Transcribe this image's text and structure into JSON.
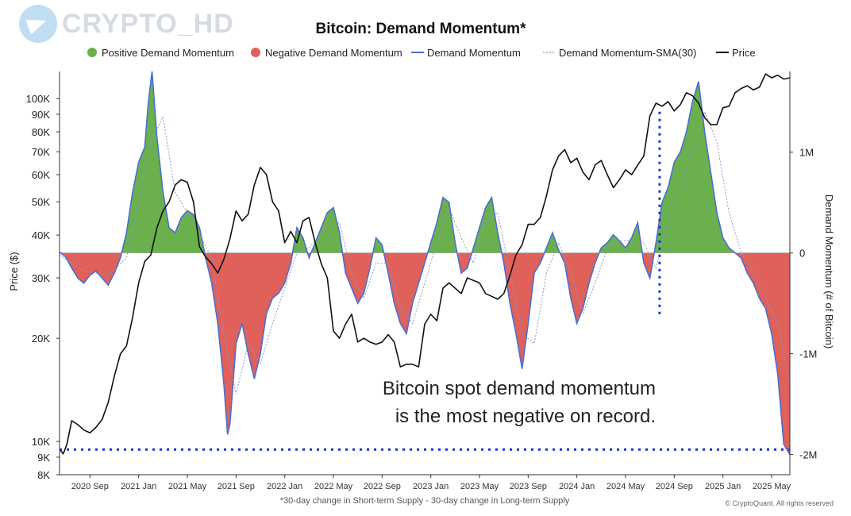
{
  "watermark": {
    "text": "CRYPTO_HD",
    "icon": "telegram-icon"
  },
  "chart_data": {
    "type": "area",
    "title": "Bitcoin: Demand Momentum*",
    "footnote": "*30-day change in Short-term Supply - 30-day change in Long-term Supply",
    "credit": "© CryptoQuant. All rights reserved",
    "legend": [
      {
        "label": "Positive Demand Momentum",
        "symbol": "dot",
        "color": "#6ab04c"
      },
      {
        "label": "Negative Demand Momentum",
        "symbol": "dot",
        "color": "#e0605a"
      },
      {
        "label": "Demand Momentum",
        "symbol": "line",
        "color": "#4a6fd0"
      },
      {
        "label": "Demand Momentum-SMA(30)",
        "symbol": "dotted",
        "color": "#8c97c8"
      },
      {
        "label": "Price",
        "symbol": "line",
        "color": "#111111"
      }
    ],
    "legend_position": "top",
    "x_ticks": [
      "2020 Sep",
      "2021 Jan",
      "2021 May",
      "2021 Sep",
      "2022 Jan",
      "2022 May",
      "2022 Sep",
      "2023 Jan",
      "2023 May",
      "2023 Sep",
      "2024 Jan",
      "2024 May",
      "2024 Sep",
      "2025 Jan",
      "2025 May"
    ],
    "x_tick_months": [
      2.5,
      6.5,
      10.5,
      14.5,
      18.5,
      22.5,
      26.5,
      30.5,
      34.5,
      38.5,
      42.5,
      46.5,
      50.5,
      54.5,
      58.5
    ],
    "x_range_months": [
      0,
      60
    ],
    "y_left": {
      "label": "Price ($)",
      "scale": "log",
      "range": [
        8000,
        120000
      ],
      "ticks": [
        {
          "v": 8000,
          "label": "8K"
        },
        {
          "v": 9000,
          "label": "9K"
        },
        {
          "v": 10000,
          "label": "10K"
        },
        {
          "v": 20000,
          "label": "20K"
        },
        {
          "v": 30000,
          "label": "30K"
        },
        {
          "v": 40000,
          "label": "40K"
        },
        {
          "v": 50000,
          "label": "50K"
        },
        {
          "v": 60000,
          "label": "60K"
        },
        {
          "v": 70000,
          "label": "70K"
        },
        {
          "v": 80000,
          "label": "80K"
        },
        {
          "v": 90000,
          "label": "90K"
        },
        {
          "v": 100000,
          "label": "100K"
        }
      ]
    },
    "y_right": {
      "label": "Demand Momentum (# of Bitcoin)",
      "scale": "linear",
      "range": [
        -2200000,
        1800000
      ],
      "ticks": [
        {
          "v": 1000000,
          "label": "1M"
        },
        {
          "v": 0,
          "label": "0"
        },
        {
          "v": -1000000,
          "label": "-1M"
        },
        {
          "v": -2000000,
          "label": "-2M"
        }
      ]
    },
    "grid": false,
    "annotation": {
      "lines": [
        "Bitcoin spot demand momentum",
        "is the most negative on record."
      ]
    },
    "reference_line": {
      "value": -1950000,
      "style": "dotted",
      "color": "#1a33d6"
    },
    "marker_line": {
      "month": 49.3,
      "from": -650000,
      "to": 1400000,
      "style": "dotted",
      "color": "#1a33d6"
    },
    "momentum_series": {
      "name": "Demand Momentum",
      "unit": "BTC",
      "points": [
        [
          0,
          10000
        ],
        [
          0.5,
          -40000
        ],
        [
          1,
          -150000
        ],
        [
          1.5,
          -250000
        ],
        [
          2,
          -300000
        ],
        [
          2.5,
          -220000
        ],
        [
          3,
          -180000
        ],
        [
          3.5,
          -250000
        ],
        [
          4,
          -320000
        ],
        [
          4.5,
          -200000
        ],
        [
          5,
          -50000
        ],
        [
          5.5,
          200000
        ],
        [
          6,
          600000
        ],
        [
          6.5,
          900000
        ],
        [
          7,
          1050000
        ],
        [
          7.3,
          1500000
        ],
        [
          7.6,
          1800000
        ],
        [
          8,
          1150000
        ],
        [
          8.5,
          600000
        ],
        [
          9,
          250000
        ],
        [
          9.5,
          200000
        ],
        [
          10,
          350000
        ],
        [
          10.5,
          420000
        ],
        [
          11,
          380000
        ],
        [
          11.5,
          250000
        ],
        [
          12,
          -50000
        ],
        [
          12.5,
          -300000
        ],
        [
          13,
          -700000
        ],
        [
          13.5,
          -1300000
        ],
        [
          13.8,
          -1800000
        ],
        [
          14,
          -1700000
        ],
        [
          14.5,
          -900000
        ],
        [
          15,
          -700000
        ],
        [
          15.5,
          -1000000
        ],
        [
          16,
          -1250000
        ],
        [
          16.5,
          -1000000
        ],
        [
          17,
          -600000
        ],
        [
          17.5,
          -450000
        ],
        [
          18,
          -400000
        ],
        [
          18.5,
          -300000
        ],
        [
          19,
          -100000
        ],
        [
          19.5,
          250000
        ],
        [
          20,
          150000
        ],
        [
          20.5,
          -50000
        ],
        [
          21,
          100000
        ],
        [
          21.5,
          250000
        ],
        [
          22,
          400000
        ],
        [
          22.5,
          450000
        ],
        [
          23,
          200000
        ],
        [
          23.5,
          -200000
        ],
        [
          24,
          -350000
        ],
        [
          24.5,
          -500000
        ],
        [
          25,
          -400000
        ],
        [
          25.5,
          -150000
        ],
        [
          26,
          150000
        ],
        [
          26.5,
          80000
        ],
        [
          27,
          -200000
        ],
        [
          27.5,
          -500000
        ],
        [
          28,
          -700000
        ],
        [
          28.5,
          -800000
        ],
        [
          29,
          -500000
        ],
        [
          29.5,
          -300000
        ],
        [
          30,
          -100000
        ],
        [
          30.5,
          100000
        ],
        [
          31,
          300000
        ],
        [
          31.5,
          550000
        ],
        [
          32,
          500000
        ],
        [
          32.5,
          100000
        ],
        [
          33,
          -200000
        ],
        [
          33.5,
          -150000
        ],
        [
          34,
          50000
        ],
        [
          34.5,
          250000
        ],
        [
          35,
          450000
        ],
        [
          35.5,
          550000
        ],
        [
          36,
          200000
        ],
        [
          36.5,
          -100000
        ],
        [
          37,
          -500000
        ],
        [
          37.5,
          -800000
        ],
        [
          38,
          -1150000
        ],
        [
          38.5,
          -700000
        ],
        [
          39,
          -200000
        ],
        [
          39.5,
          -100000
        ],
        [
          40,
          50000
        ],
        [
          40.5,
          200000
        ],
        [
          41,
          30000
        ],
        [
          41.5,
          -100000
        ],
        [
          42,
          -450000
        ],
        [
          42.5,
          -700000
        ],
        [
          43,
          -550000
        ],
        [
          43.5,
          -300000
        ],
        [
          44,
          -100000
        ],
        [
          44.5,
          50000
        ],
        [
          45,
          100000
        ],
        [
          45.5,
          180000
        ],
        [
          46,
          120000
        ],
        [
          46.5,
          50000
        ],
        [
          47,
          150000
        ],
        [
          47.5,
          300000
        ],
        [
          48,
          -100000
        ],
        [
          48.5,
          -250000
        ],
        [
          49,
          100000
        ],
        [
          49.5,
          500000
        ],
        [
          50,
          650000
        ],
        [
          50.5,
          900000
        ],
        [
          51,
          1000000
        ],
        [
          51.5,
          1200000
        ],
        [
          52,
          1500000
        ],
        [
          52.5,
          1700000
        ],
        [
          53,
          1200000
        ],
        [
          53.5,
          800000
        ],
        [
          54,
          400000
        ],
        [
          54.5,
          150000
        ],
        [
          55,
          50000
        ],
        [
          55.5,
          0
        ],
        [
          56,
          -50000
        ],
        [
          56.5,
          -200000
        ],
        [
          57,
          -300000
        ],
        [
          57.5,
          -450000
        ],
        [
          58,
          -550000
        ],
        [
          58.5,
          -800000
        ],
        [
          59,
          -1200000
        ],
        [
          59.5,
          -1900000
        ],
        [
          60,
          -2000000
        ]
      ]
    },
    "sma_series": {
      "name": "Demand Momentum-SMA(30)",
      "unit": "BTC",
      "points": [
        [
          0,
          -20000
        ],
        [
          2,
          -180000
        ],
        [
          4,
          -220000
        ],
        [
          5.5,
          -50000
        ],
        [
          6.5,
          500000
        ],
        [
          7.5,
          1100000
        ],
        [
          8.5,
          1350000
        ],
        [
          9.5,
          600000
        ],
        [
          11,
          300000
        ],
        [
          12.5,
          -50000
        ],
        [
          13.5,
          -800000
        ],
        [
          14.5,
          -1400000
        ],
        [
          15.5,
          -900000
        ],
        [
          16.5,
          -1100000
        ],
        [
          17.5,
          -700000
        ],
        [
          18.5,
          -350000
        ],
        [
          19.5,
          0
        ],
        [
          20.5,
          50000
        ],
        [
          22,
          250000
        ],
        [
          23,
          300000
        ],
        [
          24,
          -200000
        ],
        [
          25,
          -450000
        ],
        [
          26,
          -100000
        ],
        [
          27,
          -100000
        ],
        [
          28,
          -550000
        ],
        [
          29,
          -700000
        ],
        [
          30,
          -300000
        ],
        [
          31,
          100000
        ],
        [
          32,
          450000
        ],
        [
          33,
          150000
        ],
        [
          34,
          -100000
        ],
        [
          35,
          300000
        ],
        [
          36,
          400000
        ],
        [
          37,
          -200000
        ],
        [
          38,
          -800000
        ],
        [
          39,
          -900000
        ],
        [
          40,
          -200000
        ],
        [
          41,
          100000
        ],
        [
          42,
          -200000
        ],
        [
          43,
          -600000
        ],
        [
          44,
          -300000
        ],
        [
          45,
          50000
        ],
        [
          46,
          120000
        ],
        [
          47,
          120000
        ],
        [
          48,
          100000
        ],
        [
          49,
          -150000
        ],
        [
          50,
          300000
        ],
        [
          51,
          650000
        ],
        [
          52,
          1000000
        ],
        [
          53,
          1400000
        ],
        [
          54,
          1100000
        ],
        [
          55,
          400000
        ],
        [
          56,
          0
        ],
        [
          57,
          -200000
        ],
        [
          58,
          -450000
        ],
        [
          59,
          -700000
        ],
        [
          60,
          -1300000
        ]
      ]
    },
    "price_series": {
      "name": "Price",
      "unit": "USD",
      "points": [
        [
          0,
          9500
        ],
        [
          0.3,
          9200
        ],
        [
          0.6,
          9800
        ],
        [
          1,
          11500
        ],
        [
          1.5,
          11200
        ],
        [
          2,
          10800
        ],
        [
          2.5,
          10600
        ],
        [
          3,
          11000
        ],
        [
          3.5,
          11600
        ],
        [
          4,
          13000
        ],
        [
          4.5,
          15500
        ],
        [
          5,
          18000
        ],
        [
          5.5,
          19000
        ],
        [
          6,
          23000
        ],
        [
          6.5,
          29000
        ],
        [
          7,
          33500
        ],
        [
          7.5,
          35000
        ],
        [
          8,
          42000
        ],
        [
          8.5,
          47000
        ],
        [
          9,
          50000
        ],
        [
          9.5,
          56000
        ],
        [
          10,
          58000
        ],
        [
          10.5,
          57000
        ],
        [
          11,
          50000
        ],
        [
          11.5,
          37000
        ],
        [
          12,
          34500
        ],
        [
          12.5,
          33000
        ],
        [
          13,
          31000
        ],
        [
          13.5,
          34000
        ],
        [
          14,
          39000
        ],
        [
          14.5,
          47000
        ],
        [
          15,
          44000
        ],
        [
          15.5,
          46000
        ],
        [
          16,
          56000
        ],
        [
          16.5,
          63000
        ],
        [
          17,
          60000
        ],
        [
          17.5,
          50000
        ],
        [
          18,
          47000
        ],
        [
          18.5,
          38000
        ],
        [
          19,
          41000
        ],
        [
          19.5,
          38000
        ],
        [
          20,
          44000
        ],
        [
          20.5,
          45000
        ],
        [
          21,
          38000
        ],
        [
          21.5,
          33000
        ],
        [
          22,
          30000
        ],
        [
          22.5,
          21000
        ],
        [
          23,
          20000
        ],
        [
          23.5,
          22000
        ],
        [
          24,
          23500
        ],
        [
          24.5,
          19500
        ],
        [
          25,
          20000
        ],
        [
          25.5,
          19500
        ],
        [
          26,
          19200
        ],
        [
          26.5,
          19500
        ],
        [
          27,
          20500
        ],
        [
          27.5,
          19500
        ],
        [
          28,
          16500
        ],
        [
          28.5,
          16800
        ],
        [
          29,
          16800
        ],
        [
          29.5,
          16500
        ],
        [
          30,
          22000
        ],
        [
          30.5,
          23500
        ],
        [
          31,
          22500
        ],
        [
          31.5,
          28000
        ],
        [
          32,
          29000
        ],
        [
          32.5,
          28000
        ],
        [
          33,
          27000
        ],
        [
          33.5,
          30000
        ],
        [
          34,
          29500
        ],
        [
          34.5,
          29000
        ],
        [
          35,
          27000
        ],
        [
          35.5,
          26500
        ],
        [
          36,
          26000
        ],
        [
          36.5,
          27000
        ],
        [
          37,
          30500
        ],
        [
          37.5,
          35000
        ],
        [
          38,
          37500
        ],
        [
          38.5,
          43000
        ],
        [
          39,
          43000
        ],
        [
          39.5,
          45000
        ],
        [
          40,
          52000
        ],
        [
          40.5,
          62000
        ],
        [
          41,
          68000
        ],
        [
          41.5,
          71000
        ],
        [
          42,
          65000
        ],
        [
          42.5,
          67000
        ],
        [
          43,
          61000
        ],
        [
          43.5,
          58000
        ],
        [
          44,
          64000
        ],
        [
          44.5,
          66000
        ],
        [
          45,
          60000
        ],
        [
          45.5,
          55000
        ],
        [
          46,
          58000
        ],
        [
          46.5,
          62000
        ],
        [
          47,
          60000
        ],
        [
          47.5,
          64000
        ],
        [
          48,
          68000
        ],
        [
          48.5,
          89000
        ],
        [
          49,
          97000
        ],
        [
          49.5,
          95000
        ],
        [
          50,
          98000
        ],
        [
          50.5,
          92000
        ],
        [
          51,
          96000
        ],
        [
          51.5,
          104000
        ],
        [
          52,
          102000
        ],
        [
          52.5,
          97000
        ],
        [
          53,
          88000
        ],
        [
          53.5,
          84000
        ],
        [
          54,
          84000
        ],
        [
          54.5,
          94000
        ],
        [
          55,
          95000
        ],
        [
          55.5,
          104000
        ],
        [
          56,
          107000
        ],
        [
          56.5,
          109000
        ],
        [
          57,
          106000
        ],
        [
          57.5,
          108000
        ],
        [
          58,
          118000
        ],
        [
          58.5,
          115000
        ],
        [
          59,
          117000
        ],
        [
          59.5,
          114000
        ],
        [
          60,
          115000
        ]
      ]
    }
  }
}
